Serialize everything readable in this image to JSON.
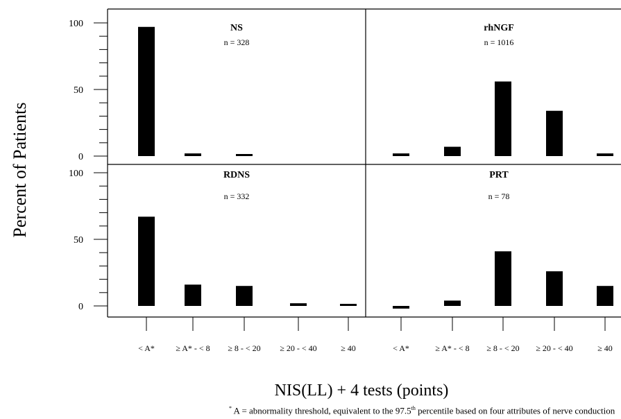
{
  "chart_data": {
    "type": "bar",
    "ylabel": "Percent of Patients",
    "xlabel": "NIS(LL) + 4 tests (points)",
    "ylim": [
      0,
      100
    ],
    "yticks": [
      "0",
      "50",
      "100"
    ],
    "categories": [
      "< A*",
      "≥ A* - < 8",
      "≥ 8 - < 20",
      "≥ 20 - < 40",
      "≥ 40"
    ],
    "footnote": {
      "marker": "*",
      "text_a": " A = abnormality threshold, equivalent to the 97.5",
      "sup": "th",
      "text_b": " percentile based on four attributes of nerve conduction"
    },
    "panels": [
      {
        "title": "NS",
        "n": "n = 328",
        "values": [
          97,
          2,
          0.5,
          null,
          null
        ]
      },
      {
        "title": "rhNGF",
        "n": "n = 1016",
        "values": [
          2,
          7,
          56,
          34,
          2
        ]
      },
      {
        "title": "RDNS",
        "n": "n = 332",
        "values": [
          67,
          16,
          15,
          2,
          1
        ]
      },
      {
        "title": "PRT",
        "n": "n = 78",
        "values": [
          -2,
          4,
          41,
          26,
          15
        ]
      }
    ]
  }
}
